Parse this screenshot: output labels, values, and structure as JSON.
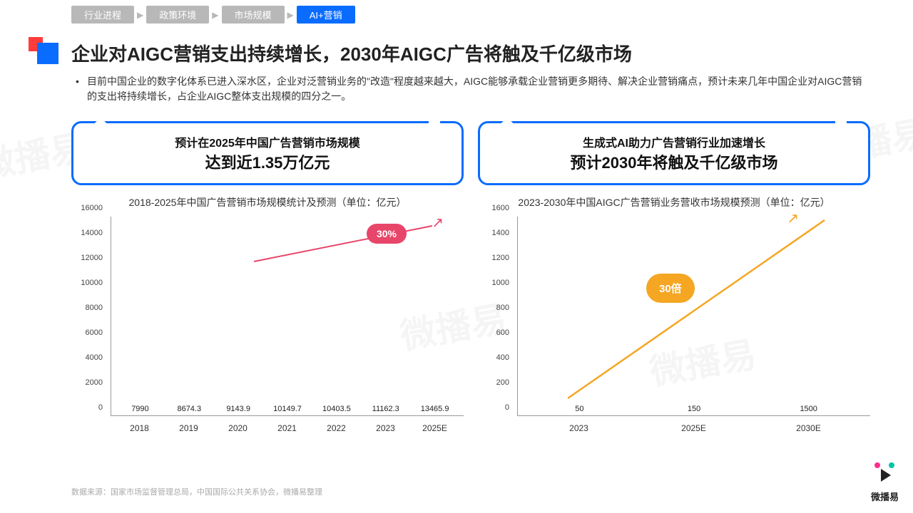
{
  "breadcrumb": {
    "items": [
      "行业进程",
      "政策环境",
      "市场规模",
      "AI+营销"
    ],
    "grey_bg": "#b8b8b8",
    "blue_bg": "#0a6cff"
  },
  "title": "企业对AIGC营销支出持续增长，2030年AIGC广告将触及千亿级市场",
  "description": "目前中国企业的数字化体系已进入深水区，企业对泛营销业务的\"改造\"程度越来越大，AIGC能够承载企业营销更多期待、解决企业营销痛点，预计未来几年中国企业对AIGC营销的支出将持续增长，占企业AIGC整体支出规模的四分之一。",
  "left": {
    "callout_sub": "预计在2025年中国广告营销市场规模",
    "callout_main": "达到近1.35万亿元",
    "chart_title": "2018-2025年中国广告营销市场规模统计及预测（单位：亿元）",
    "type": "bar",
    "bar_color": "#0a6cff",
    "ylim": [
      0,
      16000
    ],
    "ytick_step": 2000,
    "yticks": [
      0,
      2000,
      4000,
      6000,
      8000,
      10000,
      12000,
      14000,
      16000
    ],
    "categories": [
      "2018",
      "2019",
      "2020",
      "2021",
      "2022",
      "2023",
      "2025E"
    ],
    "values": [
      7990,
      8674.3,
      9143.9,
      10149.7,
      10403.5,
      11162.3,
      13465.9
    ],
    "badge": {
      "text": "30%",
      "color": "#e8456a"
    },
    "arrow_color": "#e8456a"
  },
  "right": {
    "callout_sub": "生成式AI助力广告营销行业加速增长",
    "callout_main": "预计2030年将触及千亿级市场",
    "chart_title": "2023-2030年中国AIGC广告营销业务营收市场规模预测（单位：亿元）",
    "type": "bar",
    "bar_color": "#2dd4d4",
    "ylim": [
      0,
      1600
    ],
    "ytick_step": 200,
    "yticks": [
      0,
      200,
      400,
      600,
      800,
      1000,
      1200,
      1400,
      1600
    ],
    "categories": [
      "2023",
      "2025E",
      "2030E"
    ],
    "values": [
      50,
      150,
      1500
    ],
    "badge": {
      "text": "30倍",
      "color": "#f5a623"
    },
    "arrow_color": "#f5a623"
  },
  "footer": "数据来源：国家市场监督管理总局，中国国际公共关系协会，微播易整理",
  "logo": {
    "text": "微播易",
    "dot_colors": [
      "#ff2d8a",
      "#00c4a7"
    ]
  },
  "watermark": "微播易"
}
